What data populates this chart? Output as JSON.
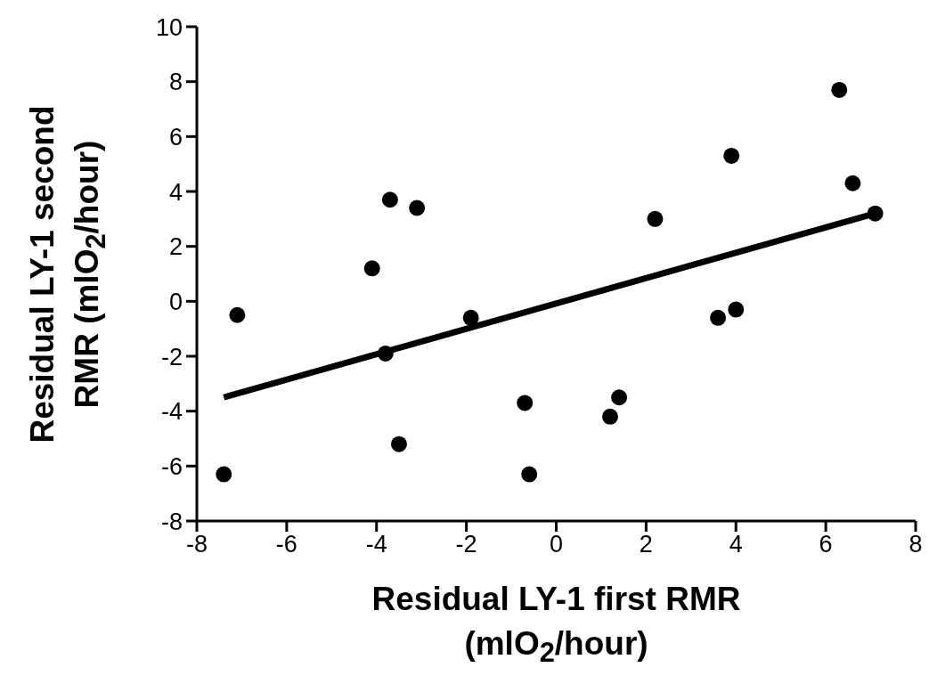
{
  "chart_data": {
    "type": "scatter",
    "xlabel": "Residual LY-1 first RMR (mlO$_{2}$/hour)",
    "ylabel": "Residual LY-1 second RMR (mlO$_{2}$/hour)",
    "xlim": [
      -8,
      8
    ],
    "ylim": [
      -8,
      10
    ],
    "xticks": [
      -8,
      -6,
      -4,
      -2,
      0,
      2,
      4,
      6,
      8
    ],
    "yticks": [
      -8,
      -6,
      -4,
      -2,
      0,
      2,
      4,
      6,
      8,
      10
    ],
    "series": [
      {
        "marker": "circle",
        "color": "#000000",
        "x": [
          -7.4,
          -7.1,
          -4.1,
          -3.7,
          -3.1,
          -3.8,
          -3.5,
          -1.9,
          -0.7,
          -0.6,
          1.2,
          1.4,
          2.2,
          3.6,
          4.0,
          3.9,
          6.3,
          6.6,
          7.1
        ],
        "values": [
          -6.3,
          -0.5,
          1.2,
          3.7,
          3.4,
          -1.9,
          -5.2,
          -0.6,
          -3.7,
          -6.3,
          -4.2,
          -3.5,
          3.0,
          -0.6,
          -0.3,
          5.3,
          7.7,
          4.3,
          3.2
        ]
      },
      {
        "type": "line",
        "color": "#000000",
        "line_style": "solid",
        "x": [
          -7.4,
          7.1
        ],
        "values": [
          -3.5,
          3.2
        ]
      }
    ]
  }
}
